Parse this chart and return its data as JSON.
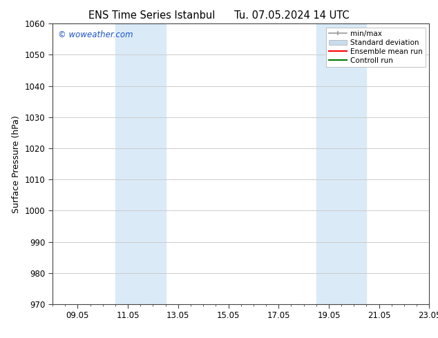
{
  "title_left": "ENS Time Series Istanbul",
  "title_right": "Tu. 07.05.2024 14 UTC",
  "ylabel": "Surface Pressure (hPa)",
  "ylim": [
    970,
    1060
  ],
  "yticks": [
    970,
    980,
    990,
    1000,
    1010,
    1020,
    1030,
    1040,
    1050,
    1060
  ],
  "xtick_labels": [
    "09.05",
    "11.05",
    "13.05",
    "15.05",
    "17.05",
    "19.05",
    "21.05",
    "23.05"
  ],
  "xtick_positions": [
    1,
    3,
    5,
    7,
    9,
    11,
    13,
    15
  ],
  "minor_xtick_positions": [
    0,
    0.5,
    1,
    1.5,
    2,
    2.5,
    3,
    3.5,
    4,
    4.5,
    5,
    5.5,
    6,
    6.5,
    7,
    7.5,
    8,
    8.5,
    9,
    9.5,
    10,
    10.5,
    11,
    11.5,
    12,
    12.5,
    13,
    13.5,
    14,
    14.5,
    15
  ],
  "xlim": [
    0,
    15
  ],
  "shaded_bands": [
    {
      "x_start": 2.5,
      "x_end": 4.5
    },
    {
      "x_start": 10.5,
      "x_end": 12.5
    }
  ],
  "shaded_color": "#daeaf7",
  "watermark_text": "© woweather.com",
  "watermark_color": "#1a52c7",
  "legend_items": [
    {
      "label": "min/max",
      "color": "#aaaaaa",
      "lw": 1.5
    },
    {
      "label": "Standard deviation",
      "color": "#c8dced",
      "lw": 6
    },
    {
      "label": "Ensemble mean run",
      "color": "#ff0000",
      "lw": 1.5
    },
    {
      "label": "Controll run",
      "color": "#007700",
      "lw": 1.5
    }
  ],
  "bg_color": "#ffffff",
  "grid_color": "#cccccc",
  "spine_color": "#444444",
  "font_color": "#000000",
  "title_fontsize": 10.5,
  "label_fontsize": 9,
  "tick_fontsize": 8.5
}
